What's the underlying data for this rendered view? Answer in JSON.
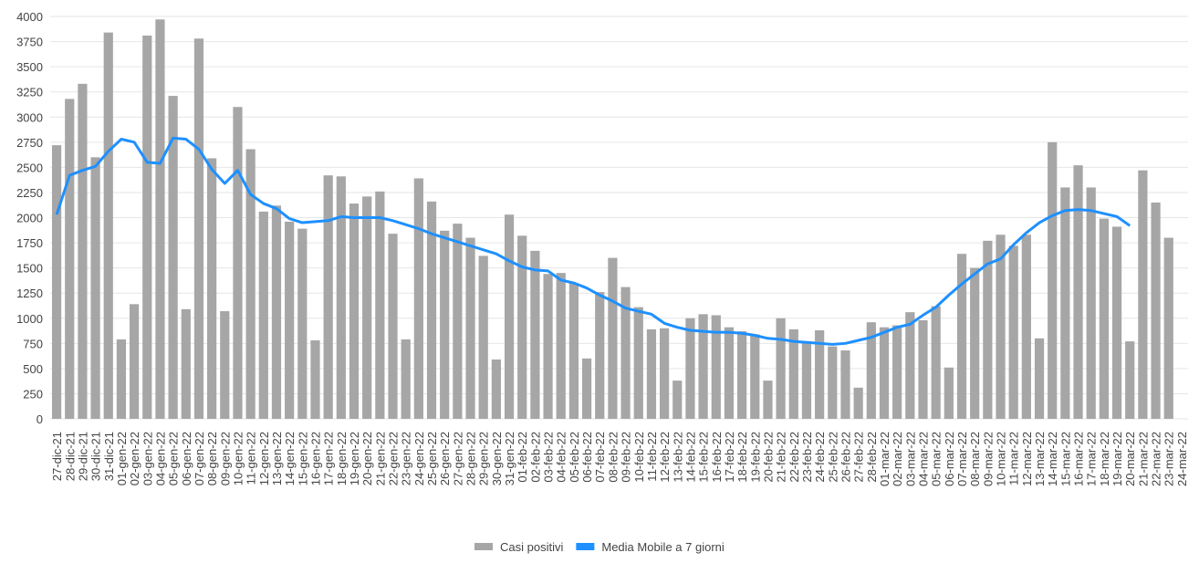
{
  "chart_data": {
    "type": "bar-line",
    "categories": [
      "27-dic-21",
      "28-dic-21",
      "29-dic-21",
      "30-dic-21",
      "31-dic-21",
      "01-gen-22",
      "02-gen-22",
      "03-gen-22",
      "04-gen-22",
      "05-gen-22",
      "06-gen-22",
      "07-gen-22",
      "08-gen-22",
      "09-gen-22",
      "10-gen-22",
      "11-gen-22",
      "12-gen-22",
      "13-gen-22",
      "14-gen-22",
      "15-gen-22",
      "16-gen-22",
      "17-gen-22",
      "18-gen-22",
      "19-gen-22",
      "20-gen-22",
      "21-gen-22",
      "22-gen-22",
      "23-gen-22",
      "24-gen-22",
      "25-gen-22",
      "26-gen-22",
      "27-gen-22",
      "28-gen-22",
      "29-gen-22",
      "30-gen-22",
      "31-gen-22",
      "01-feb-22",
      "02-feb-22",
      "03-feb-22",
      "04-feb-22",
      "05-feb-22",
      "06-feb-22",
      "07-feb-22",
      "08-feb-22",
      "09-feb-22",
      "10-feb-22",
      "11-feb-22",
      "12-feb-22",
      "13-feb-22",
      "14-feb-22",
      "15-feb-22",
      "16-feb-22",
      "17-feb-22",
      "18-feb-22",
      "19-feb-22",
      "20-feb-22",
      "21-feb-22",
      "22-feb-22",
      "23-feb-22",
      "24-feb-22",
      "25-feb-22",
      "26-feb-22",
      "27-feb-22",
      "28-feb-22",
      "01-mar-22",
      "02-mar-22",
      "03-mar-22",
      "04-mar-22",
      "05-mar-22",
      "06-mar-22",
      "07-mar-22",
      "08-mar-22",
      "09-mar-22",
      "10-mar-22",
      "11-mar-22",
      "12-mar-22",
      "13-mar-22",
      "14-mar-22",
      "15-mar-22",
      "16-mar-22",
      "17-mar-22",
      "18-mar-22",
      "19-mar-22",
      "20-mar-22",
      "21-mar-22",
      "22-mar-22",
      "23-mar-22",
      "24-mar-22"
    ],
    "series": [
      {
        "name": "Casi positivi",
        "color": "#a6a6a6",
        "kind": "bar",
        "values": [
          2720,
          3180,
          3330,
          2600,
          3840,
          790,
          1140,
          3810,
          3970,
          3210,
          1090,
          3780,
          2590,
          1070,
          3100,
          2680,
          2060,
          2120,
          1960,
          1890,
          780,
          2420,
          2410,
          2140,
          2210,
          2260,
          1840,
          790,
          2390,
          2160,
          1870,
          1940,
          1800,
          1620,
          590,
          2030,
          1820,
          1670,
          1440,
          1450,
          1350,
          600,
          1260,
          1600,
          1310,
          1110,
          890,
          900,
          380,
          1000,
          1040,
          1030,
          910,
          870,
          840,
          380,
          1000,
          890,
          760,
          880,
          720,
          680,
          310,
          960,
          910,
          930,
          1060,
          980,
          1120,
          510,
          1640,
          1500,
          1770,
          1830,
          1720,
          1830,
          800,
          2750,
          2300,
          2520,
          2300,
          1990,
          1910,
          770,
          2470,
          2150,
          1800,
          null
        ]
      },
      {
        "name": "Media Mobile a 7 giorni",
        "color": "#1e90ff",
        "kind": "line",
        "values": [
          2030,
          2420,
          2470,
          2510,
          2660,
          2780,
          2750,
          2550,
          2540,
          2790,
          2780,
          2680,
          2480,
          2340,
          2470,
          2230,
          2140,
          2090,
          1990,
          1950,
          1960,
          1970,
          2010,
          2000,
          2000,
          2000,
          1970,
          1930,
          1890,
          1840,
          1800,
          1760,
          1720,
          1680,
          1640,
          1570,
          1510,
          1480,
          1470,
          1380,
          1350,
          1300,
          1230,
          1170,
          1100,
          1070,
          1040,
          950,
          910,
          880,
          870,
          860,
          860,
          850,
          830,
          800,
          790,
          770,
          760,
          750,
          740,
          750,
          780,
          810,
          860,
          910,
          940,
          1030,
          1110,
          1230,
          1340,
          1440,
          1540,
          1590,
          1730,
          1850,
          1950,
          2020,
          2070,
          2080,
          2070,
          2040,
          2010,
          1920,
          null,
          null,
          null,
          null
        ]
      }
    ],
    "ylim": [
      0,
      4000
    ],
    "yticks": [
      0,
      250,
      500,
      750,
      1000,
      1250,
      1500,
      1750,
      2000,
      2250,
      2500,
      2750,
      3000,
      3250,
      3500,
      3750,
      4000
    ],
    "grid": true
  }
}
